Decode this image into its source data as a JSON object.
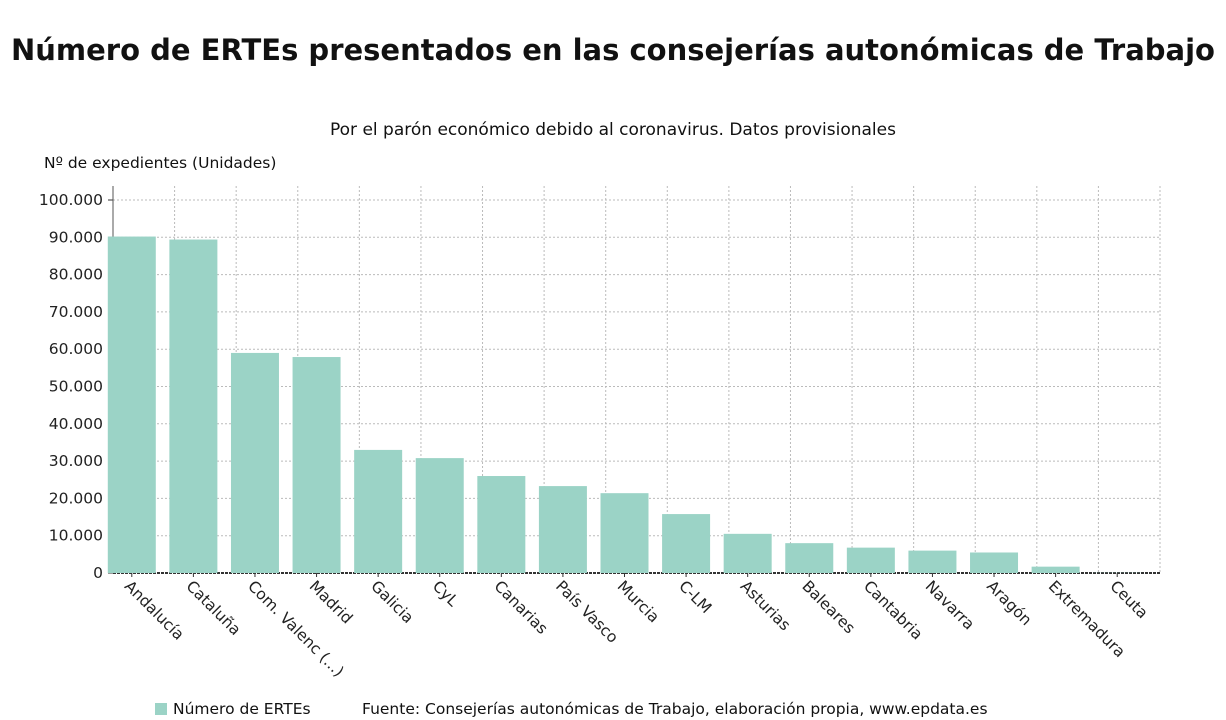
{
  "chart_data": {
    "type": "bar",
    "title": "Número de ERTEs presentados en las consejerías autonómicas de Trabajo",
    "subtitle": "Por el parón económico debido al coronavirus. Datos provisionales",
    "ylabel": "Nº de expedientes (Unidades)",
    "xlabel": "",
    "ylim": [
      0,
      100000
    ],
    "yticks": [
      "0",
      "10.000",
      "20.000",
      "30.000",
      "40.000",
      "50.000",
      "60.000",
      "70.000",
      "80.000",
      "90.000",
      "100.000"
    ],
    "grid": true,
    "legend_position": "bottom-left",
    "color": "#9bd3c6",
    "categories": [
      "Andalucía",
      "Cataluña",
      "Com. Valenc (...)",
      "Madrid",
      "Galicia",
      "CyL",
      "Canarias",
      "País Vasco",
      "Murcia",
      "C-LM",
      "Asturias",
      "Baleares",
      "Cantabria",
      "Navarra",
      "Aragón",
      "Extremadura",
      "Ceuta"
    ],
    "series": [
      {
        "name": "Número de ERTEs",
        "values": [
          90200,
          89400,
          59000,
          57900,
          33000,
          30800,
          26000,
          23300,
          21400,
          15800,
          10500,
          8000,
          6800,
          6000,
          5500,
          1700,
          50
        ]
      }
    ],
    "source": "Fuente: Consejerías autonómicas de Trabajo, elaboración propia, www.epdata.es"
  }
}
